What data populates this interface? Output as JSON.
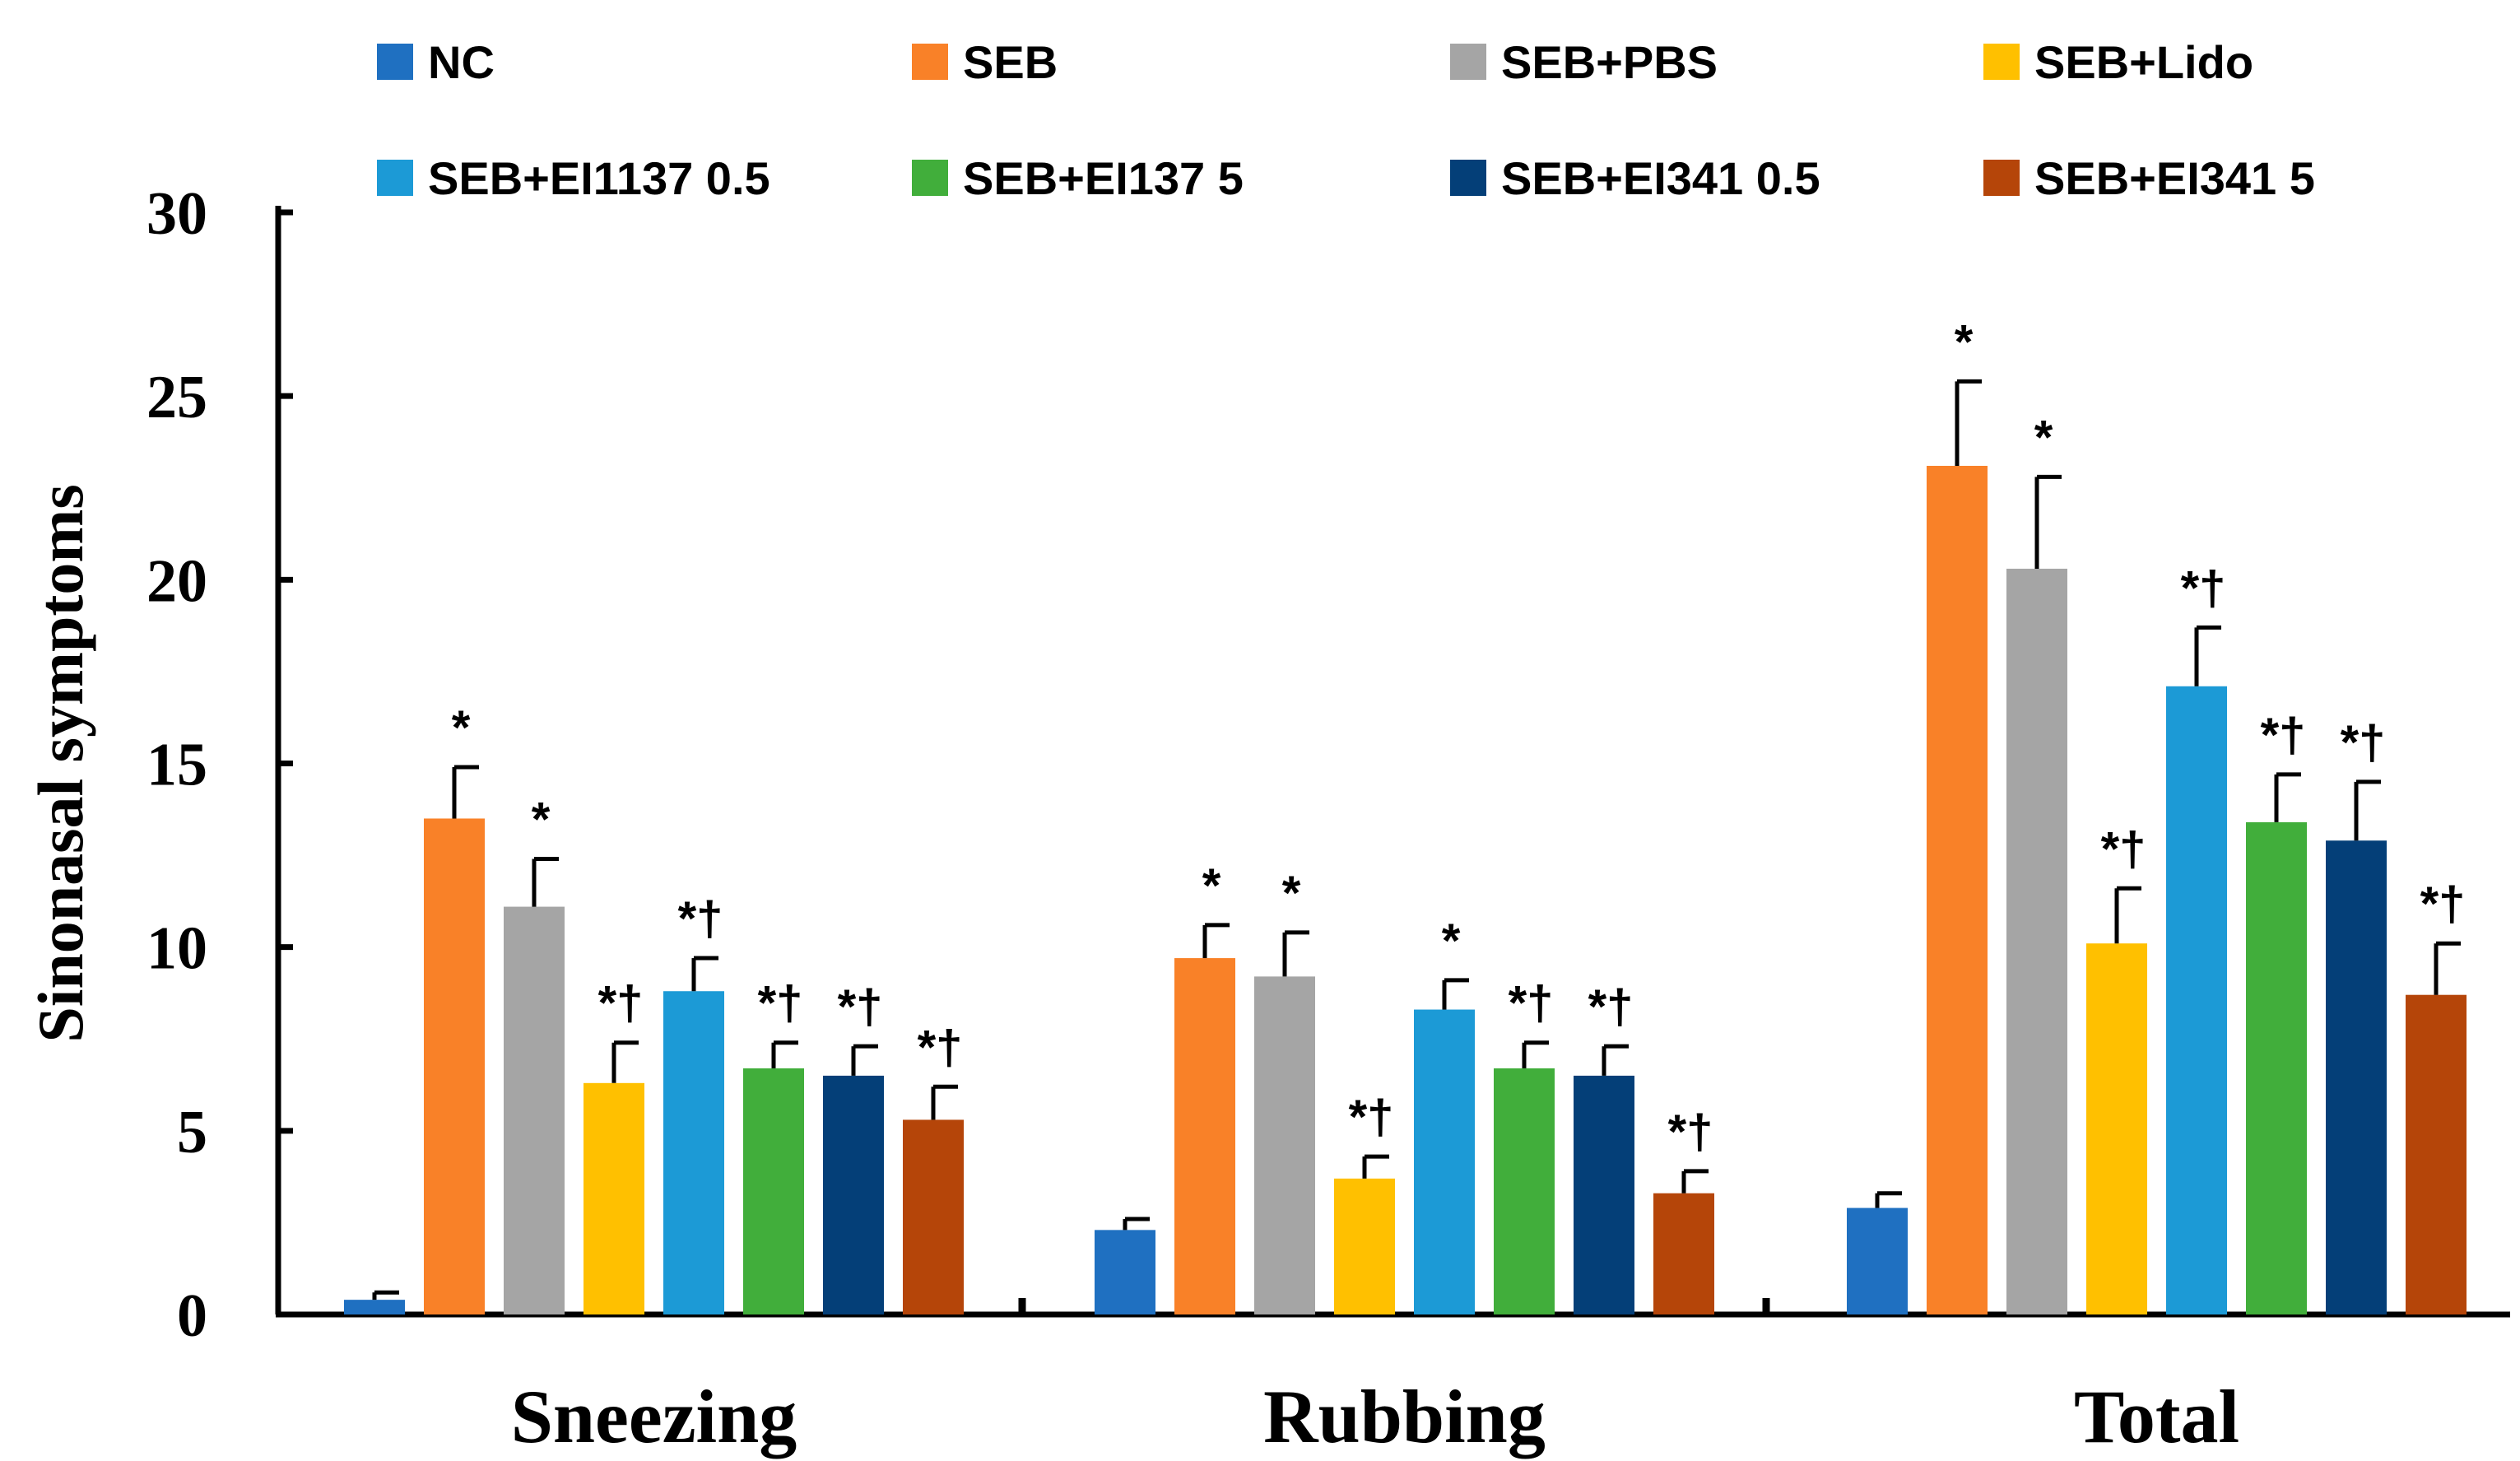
{
  "chart_data": {
    "type": "bar",
    "title": "",
    "xlabel": "",
    "ylabel": "Sinonasal symptoms",
    "ylim": [
      0,
      30
    ],
    "yticks": [
      0,
      5,
      10,
      15,
      20,
      25,
      30
    ],
    "legend_position": "top",
    "categories": [
      "Sneezing",
      "Rubbing",
      "Total"
    ],
    "series": [
      {
        "name": "NC",
        "color": "#1F70C1",
        "values": [
          0.4,
          2.3,
          2.9
        ],
        "errors": [
          0.2,
          0.3,
          0.4
        ],
        "annotations": [
          "",
          "",
          ""
        ]
      },
      {
        "name": "SEB",
        "color": "#F98128",
        "values": [
          13.5,
          9.7,
          23.1
        ],
        "errors": [
          1.4,
          0.9,
          2.3
        ],
        "annotations": [
          "*",
          "*",
          "*"
        ]
      },
      {
        "name": "SEB+PBS",
        "color": "#A5A5A5",
        "values": [
          11.1,
          9.2,
          20.3
        ],
        "errors": [
          1.3,
          1.2,
          2.5
        ],
        "annotations": [
          "*",
          "*",
          "*"
        ]
      },
      {
        "name": "SEB+Lido",
        "color": "#FFC000",
        "values": [
          6.3,
          3.7,
          10.1
        ],
        "errors": [
          1.1,
          0.6,
          1.5
        ],
        "annotations": [
          "*†",
          "*†",
          "*†"
        ]
      },
      {
        "name": "SEB+EI1137 0.5",
        "color": "#1C9AD6",
        "values": [
          8.8,
          8.3,
          17.1
        ],
        "errors": [
          0.9,
          0.8,
          1.6
        ],
        "annotations": [
          "*†",
          "*",
          "*†"
        ]
      },
      {
        "name": "SEB+EI137 5",
        "color": "#41AE3B",
        "values": [
          6.7,
          6.7,
          13.4
        ],
        "errors": [
          0.7,
          0.7,
          1.3
        ],
        "annotations": [
          "*†",
          "*†",
          "*†"
        ]
      },
      {
        "name": "SEB+EI341 0.5",
        "color": "#043F78",
        "values": [
          6.5,
          6.5,
          12.9
        ],
        "errors": [
          0.8,
          0.8,
          1.6
        ],
        "annotations": [
          "*†",
          "*†",
          "*†"
        ]
      },
      {
        "name": "SEB+EI341 5",
        "color": "#B54509",
        "values": [
          5.3,
          3.3,
          8.7
        ],
        "errors": [
          0.9,
          0.6,
          1.4
        ],
        "annotations": [
          "*†",
          "*†",
          "*†"
        ]
      }
    ]
  }
}
